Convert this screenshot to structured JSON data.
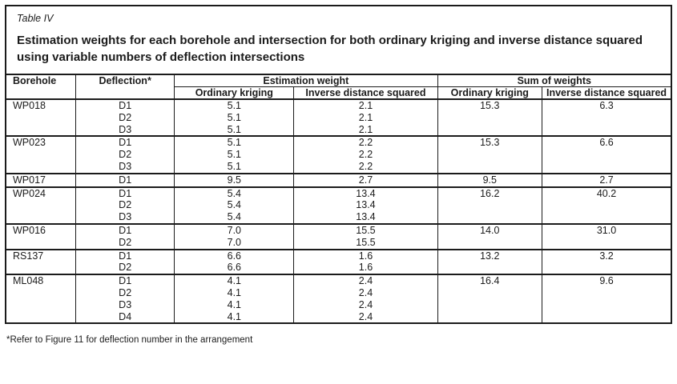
{
  "colors": {
    "text": "#1b1b1b",
    "border": "#1b1b1b",
    "background": "#ffffff"
  },
  "table_caption": "Table IV",
  "title": "Estimation weights for each borehole and intersection for both ordinary kriging and inverse distance squared using variable numbers of deflection intersections",
  "header": {
    "borehole": "Borehole",
    "deflection": "Deflection*",
    "estimation_weight": "Estimation weight",
    "sum_of_weights": "Sum of weights",
    "ordinary_kriging": "Ordinary kriging",
    "inverse_distance_squared": "Inverse distance squared"
  },
  "groups": [
    {
      "borehole": "WP018",
      "deflections": [
        "D1",
        "D2",
        "D3"
      ],
      "ok": [
        "5.1",
        "5.1",
        "5.1"
      ],
      "ids": [
        "2.1",
        "2.1",
        "2.1"
      ],
      "ok_sum": "15.3",
      "ids_sum": "6.3"
    },
    {
      "borehole": "WP023",
      "deflections": [
        "D1",
        "D2",
        "D3"
      ],
      "ok": [
        "5.1",
        "5.1",
        "5.1"
      ],
      "ids": [
        "2.2",
        "2.2",
        "2.2"
      ],
      "ok_sum": "15.3",
      "ids_sum": "6.6"
    },
    {
      "borehole": "WP017",
      "deflections": [
        "D1"
      ],
      "ok": [
        "9.5"
      ],
      "ids": [
        "2.7"
      ],
      "ok_sum": "9.5",
      "ids_sum": "2.7"
    },
    {
      "borehole": "WP024",
      "deflections": [
        "D1",
        "D2",
        "D3"
      ],
      "ok": [
        "5.4",
        "5.4",
        "5.4"
      ],
      "ids": [
        "13.4",
        "13.4",
        "13.4"
      ],
      "ok_sum": "16.2",
      "ids_sum": "40.2"
    },
    {
      "borehole": "WP016",
      "deflections": [
        "D1",
        "D2"
      ],
      "ok": [
        "7.0",
        "7.0"
      ],
      "ids": [
        "15.5",
        "15.5"
      ],
      "ok_sum": "14.0",
      "ids_sum": "31.0"
    },
    {
      "borehole": "RS137",
      "deflections": [
        "D1",
        "D2"
      ],
      "ok": [
        "6.6",
        "6.6"
      ],
      "ids": [
        "1.6",
        "1.6"
      ],
      "ok_sum": "13.2",
      "ids_sum": "3.2"
    },
    {
      "borehole": "ML048",
      "deflections": [
        "D1",
        "D2",
        "D3",
        "D4"
      ],
      "ok": [
        "4.1",
        "4.1",
        "4.1",
        "4.1"
      ],
      "ids": [
        "2.4",
        "2.4",
        "2.4",
        "2.4"
      ],
      "ok_sum": "16.4",
      "ids_sum": "9.6"
    }
  ],
  "footnote": "*Refer to Figure 11 for deflection number in the arrangement"
}
